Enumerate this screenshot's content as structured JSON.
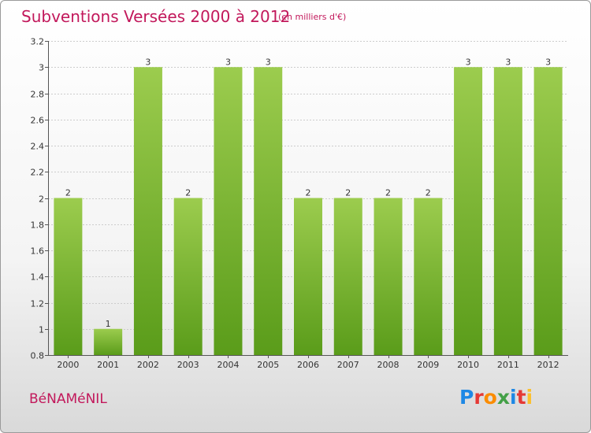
{
  "title": "Subventions Versées 2000 à 2012",
  "unit_note": "(en milliers d'€)",
  "commune": "BéNAMéNIL",
  "logo": {
    "text": "Proxiti",
    "letter_colors": [
      "#1e88e5",
      "#e53935",
      "#fb8c00",
      "#43a047",
      "#1e88e5",
      "#e53935",
      "#fbc02d"
    ]
  },
  "colors": {
    "title": "#c2185b",
    "bar_top": "#9ccc4e",
    "bar_bottom": "#5a9c1a",
    "grid": "#cccccc"
  },
  "chart_data": {
    "type": "bar",
    "categories": [
      "2000",
      "2001",
      "2002",
      "2003",
      "2004",
      "2005",
      "2006",
      "2007",
      "2008",
      "2009",
      "2010",
      "2011",
      "2012"
    ],
    "values": [
      2,
      1,
      3,
      2,
      3,
      3,
      2,
      2,
      2,
      2,
      3,
      3,
      3
    ],
    "data_labels": [
      "2",
      "1",
      "3",
      "2",
      "3",
      "3",
      "2",
      "2",
      "2",
      "2",
      "3",
      "3",
      "3"
    ],
    "ylim": [
      0.8,
      3.2
    ],
    "yticks": [
      0.8,
      1,
      1.2,
      1.4,
      1.6,
      1.8,
      2,
      2.2,
      2.4,
      2.6,
      2.8,
      3,
      3.2
    ],
    "ytick_labels": [
      "0.8",
      "1",
      "1.2",
      "1.4",
      "1.6",
      "1.8",
      "2",
      "2.2",
      "2.4",
      "2.6",
      "2.8",
      "3",
      "3.2"
    ],
    "grid": true,
    "xlabel": "",
    "ylabel": ""
  }
}
